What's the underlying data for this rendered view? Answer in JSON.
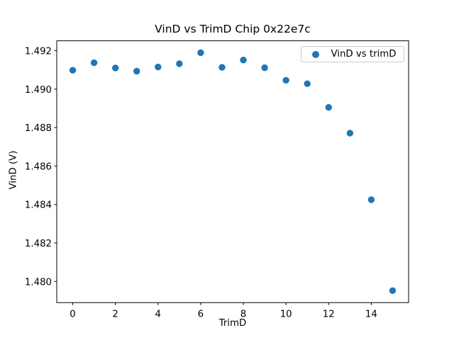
{
  "chart_data": {
    "type": "scatter",
    "title": "VinD vs TrimD Chip 0x22e7c",
    "xlabel": "TrimD",
    "ylabel": "VinD (V)",
    "legend": {
      "position": "upper right",
      "entries": [
        "VinD vs trimD"
      ]
    },
    "marker_color": "#1f77b4",
    "background": "#ffffff",
    "grid": false,
    "x": [
      0,
      1,
      2,
      3,
      4,
      5,
      6,
      7,
      8,
      9,
      10,
      11,
      12,
      13,
      14,
      15
    ],
    "y": [
      1.49098,
      1.49137,
      1.4911,
      1.49093,
      1.49115,
      1.49132,
      1.49189,
      1.49113,
      1.49151,
      1.49111,
      1.49046,
      1.49028,
      1.48905,
      1.48771,
      1.48425,
      1.47952
    ],
    "xlim": [
      -0.75,
      15.75
    ],
    "ylim": [
      1.4789,
      1.49251
    ],
    "xticks": [
      0,
      2,
      4,
      6,
      8,
      10,
      12,
      14
    ],
    "xtick_labels": [
      "0",
      "2",
      "4",
      "6",
      "8",
      "10",
      "12",
      "14"
    ],
    "yticks": [
      1.48,
      1.482,
      1.484,
      1.486,
      1.488,
      1.49,
      1.492
    ],
    "ytick_labels": [
      "1.480",
      "1.482",
      "1.484",
      "1.486",
      "1.488",
      "1.490",
      "1.492"
    ]
  }
}
